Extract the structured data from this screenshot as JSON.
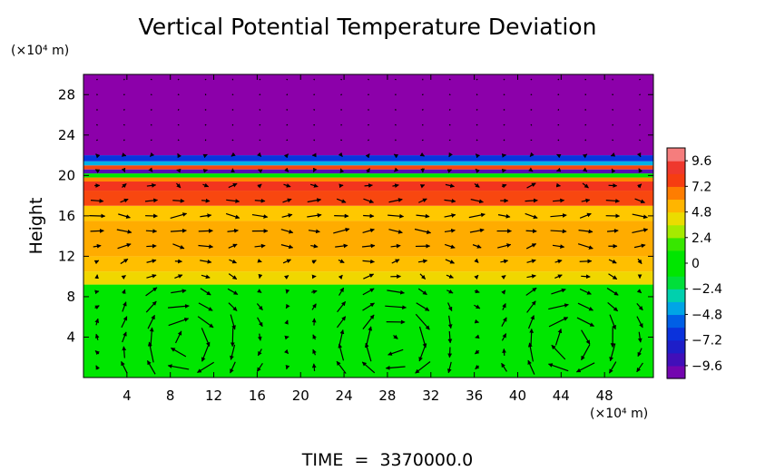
{
  "chart_data": {
    "type": "heatmap",
    "title": "Vertical Potential Temperature Deviation",
    "ylabel": "Height",
    "y_unit": "(×10⁴ m)",
    "x_unit": "(×10⁴ m)",
    "footer": "TIME  =  3370000.0",
    "xlim": [
      0,
      52.5
    ],
    "ylim": [
      0,
      30
    ],
    "x_ticks": [
      4,
      8,
      12,
      16,
      20,
      24,
      28,
      32,
      36,
      40,
      44,
      48
    ],
    "y_ticks": [
      4,
      8,
      12,
      16,
      20,
      24,
      28
    ],
    "x_tick_labels": [
      "4",
      "8",
      "12",
      "16",
      "20",
      "24",
      "28",
      "32",
      "36",
      "40",
      "44",
      "48"
    ],
    "y_tick_labels": [
      "4",
      "8",
      "12",
      "16",
      "20",
      "24",
      "28"
    ],
    "colorbar": {
      "min": -10.8,
      "max": 10.8,
      "tick_values": [
        9.6,
        7.2,
        4.8,
        2.4,
        0,
        -2.4,
        -4.8,
        -7.2,
        -9.6
      ],
      "tick_labels": [
        "9.6",
        "7.2",
        "4.8",
        "2.4",
        "0",
        "−2.4",
        "−4.8",
        "−7.2",
        "−9.6"
      ]
    },
    "vertical_profile": [
      {
        "y_from": 0,
        "y_to": 9.2,
        "value": 0.0
      },
      {
        "y_from": 9.2,
        "y_to": 10.5,
        "value": 4.4
      },
      {
        "y_from": 10.5,
        "y_to": 12.0,
        "value": 5.2
      },
      {
        "y_from": 12.0,
        "y_to": 15.5,
        "value": 5.6
      },
      {
        "y_from": 15.5,
        "y_to": 17.0,
        "value": 5.0
      },
      {
        "y_from": 17.0,
        "y_to": 18.5,
        "value": 7.6
      },
      {
        "y_from": 18.5,
        "y_to": 19.4,
        "value": 8.4
      },
      {
        "y_from": 19.4,
        "y_to": 19.8,
        "value": 6.4
      },
      {
        "y_from": 19.8,
        "y_to": 20.2,
        "value": 1.2
      },
      {
        "y_from": 20.2,
        "y_to": 20.6,
        "value": -9.6
      },
      {
        "y_from": 20.6,
        "y_to": 21.0,
        "value": 7.6
      },
      {
        "y_from": 21.0,
        "y_to": 21.4,
        "value": -4.0
      },
      {
        "y_from": 21.4,
        "y_to": 22.0,
        "value": -6.4
      },
      {
        "y_from": 22.0,
        "y_to": 30,
        "value": -10.8
      }
    ],
    "vortices": [
      {
        "x": 9.5,
        "y": 3.5,
        "sense": -1
      },
      {
        "x": 28.5,
        "y": 3.5,
        "sense": -1
      },
      {
        "x": 45,
        "y": 3.5,
        "sense": -1
      }
    ],
    "jets": [
      {
        "y_from": 10.5,
        "y_to": 20.5,
        "direction": 1
      }
    ],
    "grid": false,
    "colorbar_position": "right"
  }
}
